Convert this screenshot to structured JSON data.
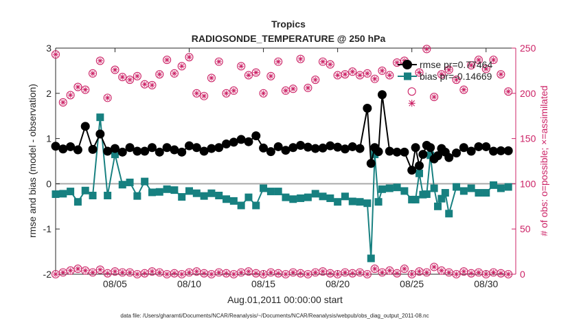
{
  "chart_data": {
    "type": "line",
    "title": "Tropics",
    "subtitle": "RADIOSONDE_TEMPERATURE @ 250 hPa",
    "xlabel": "Aug.01,2011 00:00:00 start",
    "ylabel_left": "rmse and bias (model - observation)",
    "ylabel_right": "# of obs: o=possible; ×=assimilated",
    "footnote": "data file: /Users/gharamti/Documents/NCAR/Reanalysis/~/Documents/NCAR/Reanalysis/webpub/obs_diag_output_2011-08.nc",
    "xlim": [
      1,
      32
    ],
    "ylim_left": [
      -2,
      3
    ],
    "ylim_right": [
      0,
      250
    ],
    "x_ticks": [
      5,
      10,
      15,
      20,
      25,
      30
    ],
    "x_tick_labels": [
      "08/05",
      "08/10",
      "08/15",
      "08/20",
      "08/25",
      "08/30"
    ],
    "y_ticks_left": [
      -2,
      -1,
      0,
      1,
      2,
      3
    ],
    "y_ticks_right": [
      0,
      50,
      100,
      150,
      200,
      250
    ],
    "legend": [
      {
        "name": "rmse pr=0.77464",
        "color": "#000000",
        "marker": "circle"
      },
      {
        "name": "bias pr=-0.14669",
        "color": "#178080",
        "marker": "square"
      }
    ],
    "colors": {
      "rmse": "#000000",
      "bias": "#178080",
      "obs": "#cc2266",
      "zero_line": "#aaaaaa"
    },
    "series": [
      {
        "name": "rmse",
        "x": [
          1.0,
          1.5,
          2.0,
          2.5,
          3.0,
          3.5,
          4.0,
          4.5,
          5.0,
          5.5,
          6.0,
          6.5,
          7.0,
          7.5,
          8.0,
          8.5,
          9.0,
          9.5,
          10.0,
          10.5,
          11.0,
          11.5,
          12.0,
          12.5,
          13.0,
          13.5,
          14.0,
          14.5,
          15.0,
          15.5,
          16.0,
          16.5,
          17.0,
          17.5,
          18.0,
          18.5,
          19.0,
          19.5,
          20.0,
          20.5,
          21.0,
          21.5,
          22.0,
          22.25,
          22.5,
          22.75,
          23.0,
          23.5,
          24.0,
          24.5,
          25.0,
          25.25,
          25.5,
          25.75,
          26.0,
          26.25,
          26.5,
          26.75,
          27.0,
          27.25,
          27.5,
          28.0,
          28.5,
          29.0,
          29.5,
          30.0,
          30.5,
          31.0,
          31.5
        ],
        "values": [
          0.83,
          0.77,
          0.82,
          0.75,
          1.27,
          0.76,
          1.1,
          0.72,
          0.78,
          0.7,
          0.8,
          0.72,
          0.72,
          0.8,
          0.7,
          0.8,
          0.75,
          0.7,
          0.84,
          0.8,
          0.72,
          0.78,
          0.8,
          0.88,
          0.92,
          0.98,
          0.93,
          1.06,
          0.79,
          0.71,
          0.82,
          0.74,
          0.8,
          0.85,
          0.81,
          0.78,
          0.79,
          0.84,
          0.81,
          0.77,
          0.82,
          0.78,
          1.67,
          0.45,
          0.8,
          0.71,
          1.97,
          0.72,
          0.7,
          0.7,
          0.3,
          0.8,
          0.4,
          0.65,
          0.85,
          0.8,
          0.55,
          0.62,
          0.78,
          0.7,
          0.58,
          0.68,
          0.8,
          0.72,
          0.82,
          0.82,
          0.72,
          0.73,
          0.73
        ]
      },
      {
        "name": "bias",
        "x": [
          1.0,
          1.5,
          2.0,
          2.5,
          3.0,
          3.5,
          4.0,
          4.5,
          5.0,
          5.5,
          6.0,
          6.5,
          7.0,
          7.5,
          8.0,
          8.5,
          9.0,
          9.5,
          10.0,
          10.5,
          11.0,
          11.5,
          12.0,
          12.5,
          13.0,
          13.5,
          14.0,
          14.5,
          15.0,
          15.5,
          16.0,
          16.5,
          17.0,
          17.5,
          18.0,
          18.5,
          19.0,
          19.5,
          20.0,
          20.5,
          21.0,
          21.5,
          22.0,
          22.25,
          22.5,
          22.75,
          23.0,
          23.5,
          24.0,
          24.5,
          25.0,
          25.25,
          25.5,
          25.75,
          26.0,
          26.25,
          26.5,
          26.75,
          27.0,
          27.25,
          27.5,
          28.0,
          28.5,
          29.0,
          29.5,
          30.0,
          30.5,
          31.0,
          31.5
        ],
        "values": [
          -0.23,
          -0.22,
          -0.17,
          -0.4,
          -0.15,
          -0.26,
          1.47,
          -0.26,
          0.65,
          -0.02,
          0.03,
          -0.27,
          0.05,
          -0.19,
          -0.18,
          -0.12,
          -0.14,
          -0.29,
          -0.16,
          -0.21,
          -0.27,
          -0.21,
          -0.26,
          -0.34,
          -0.38,
          -0.48,
          -0.3,
          -0.48,
          -0.1,
          -0.17,
          -0.17,
          -0.3,
          -0.34,
          -0.32,
          -0.3,
          -0.22,
          -0.28,
          -0.32,
          -0.4,
          -0.28,
          -0.39,
          -0.4,
          -0.43,
          -1.65,
          0.65,
          -0.4,
          -0.12,
          -0.1,
          -0.08,
          -0.16,
          -0.35,
          -0.35,
          0.23,
          -0.24,
          -0.23,
          0.63,
          -0.1,
          -0.5,
          -0.33,
          -0.2,
          -0.66,
          -0.07,
          -0.16,
          -0.1,
          -0.2,
          -0.2,
          -0.03,
          -0.1,
          -0.07
        ]
      },
      {
        "name": "obs_possible",
        "axis": "right",
        "x": [
          1.0,
          1.5,
          2.0,
          2.5,
          3.0,
          3.5,
          4.0,
          4.5,
          5.0,
          5.5,
          6.0,
          6.5,
          7.0,
          7.5,
          8.0,
          8.5,
          9.0,
          9.5,
          10.0,
          10.5,
          11.0,
          11.5,
          12.0,
          12.5,
          13.0,
          13.5,
          14.0,
          14.5,
          15.0,
          15.5,
          16.0,
          16.5,
          17.0,
          17.5,
          18.0,
          18.5,
          19.0,
          19.5,
          20.0,
          20.5,
          21.0,
          21.5,
          22.0,
          22.5,
          23.0,
          23.5,
          24.0,
          24.5,
          25.0,
          25.5,
          26.0,
          26.5,
          27.0,
          27.5,
          28.0,
          28.5,
          29.0,
          29.5,
          30.0,
          30.5,
          31.0,
          31.5
        ],
        "values": [
          243,
          190,
          198,
          207,
          204,
          222,
          236,
          195,
          226,
          218,
          215,
          219,
          210,
          209,
          221,
          237,
          222,
          230,
          240,
          200,
          197,
          217,
          235,
          200,
          203,
          230,
          220,
          223,
          200,
          219,
          235,
          203,
          205,
          238,
          206,
          215,
          235,
          232,
          220,
          221,
          224,
          220,
          222,
          216,
          225,
          220,
          234,
          236,
          202,
          223,
          249,
          196,
          221,
          226,
          215,
          204,
          231,
          237,
          227,
          237,
          221,
          202
        ]
      },
      {
        "name": "obs_assimilated",
        "axis": "right",
        "x": [
          1.0,
          1.5,
          2.0,
          2.5,
          3.0,
          3.5,
          4.0,
          4.5,
          5.0,
          5.5,
          6.0,
          6.5,
          7.0,
          7.5,
          8.0,
          8.5,
          9.0,
          9.5,
          10.0,
          10.5,
          11.0,
          11.5,
          12.0,
          12.5,
          13.0,
          13.5,
          14.0,
          14.5,
          15.0,
          15.5,
          16.0,
          16.5,
          17.0,
          17.5,
          18.0,
          18.5,
          19.0,
          19.5,
          20.0,
          20.5,
          21.0,
          21.5,
          22.0,
          22.5,
          23.0,
          23.5,
          24.0,
          24.5,
          25.0,
          25.5,
          26.0,
          26.5,
          27.0,
          27.5,
          28.0,
          28.5,
          29.0,
          29.5,
          30.0,
          30.5,
          31.0,
          31.5
        ],
        "values": [
          243,
          190,
          198,
          207,
          204,
          222,
          236,
          195,
          226,
          218,
          215,
          219,
          210,
          209,
          221,
          237,
          222,
          230,
          240,
          200,
          197,
          217,
          235,
          200,
          203,
          230,
          220,
          223,
          200,
          219,
          235,
          203,
          205,
          238,
          206,
          215,
          235,
          232,
          220,
          221,
          224,
          220,
          222,
          216,
          225,
          220,
          234,
          236,
          189,
          223,
          249,
          196,
          221,
          226,
          215,
          204,
          231,
          237,
          227,
          237,
          221,
          202
        ]
      },
      {
        "name": "obs_rejected",
        "axis": "right",
        "x": [
          1.0,
          1.5,
          2.0,
          2.5,
          3.0,
          3.5,
          4.0,
          4.5,
          5.0,
          5.5,
          6.0,
          6.5,
          7.0,
          7.5,
          8.0,
          8.5,
          9.0,
          9.5,
          10.0,
          10.5,
          11.0,
          11.5,
          12.0,
          12.5,
          13.0,
          13.5,
          14.0,
          14.5,
          15.0,
          15.5,
          16.0,
          16.5,
          17.0,
          17.5,
          18.0,
          18.5,
          19.0,
          19.5,
          20.0,
          20.5,
          21.0,
          21.5,
          22.0,
          22.5,
          23.0,
          23.5,
          24.0,
          24.5,
          25.0,
          25.5,
          26.0,
          26.5,
          27.0,
          27.5,
          28.0,
          28.5,
          29.0,
          29.5,
          30.0,
          30.5,
          31.0,
          31.5
        ],
        "values": [
          0,
          2,
          4,
          6,
          4,
          2,
          5,
          1,
          3,
          2,
          2,
          0,
          1,
          3,
          2,
          0,
          1,
          0,
          2,
          3,
          1,
          0,
          2,
          1,
          0,
          2,
          3,
          1,
          0,
          2,
          1,
          0,
          2,
          1,
          0,
          2,
          3,
          1,
          0,
          2,
          1,
          2,
          0,
          6,
          2,
          4,
          1,
          6,
          0,
          3,
          2,
          8,
          4,
          2,
          0,
          3,
          1,
          2,
          0,
          2,
          1,
          0
        ]
      }
    ]
  }
}
